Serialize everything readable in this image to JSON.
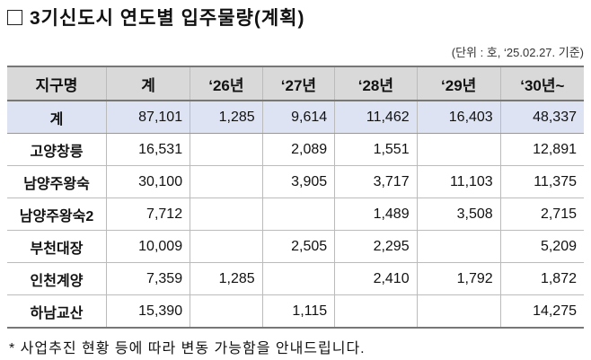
{
  "title": "3기신도시 연도별 입주물량(계획)",
  "unit": "(단위 : 호, ‘25.02.27. 기준)",
  "headers": [
    "지구명",
    "계",
    "‘26년",
    "‘27년",
    "‘28년",
    "‘29년",
    "‘30년~"
  ],
  "rows": [
    [
      "계",
      "87,101",
      "1,285",
      "9,614",
      "11,462",
      "16,403",
      "48,337"
    ],
    [
      "고양창릉",
      "16,531",
      "",
      "2,089",
      "1,551",
      "",
      "12,891"
    ],
    [
      "남양주왕숙",
      "30,100",
      "",
      "3,905",
      "3,717",
      "11,103",
      "11,375"
    ],
    [
      "남양주왕숙2",
      "7,712",
      "",
      "",
      "1,489",
      "3,508",
      "2,715"
    ],
    [
      "부천대장",
      "10,009",
      "",
      "2,505",
      "2,295",
      "",
      "5,209"
    ],
    [
      "인천계양",
      "7,359",
      "1,285",
      "",
      "2,410",
      "1,792",
      "1,872"
    ],
    [
      "하남교산",
      "15,390",
      "",
      "1,115",
      "",
      "",
      "14,275"
    ]
  ],
  "note": "* 사업추진 현황 등에 따라 변동 가능함을 안내드립니다."
}
